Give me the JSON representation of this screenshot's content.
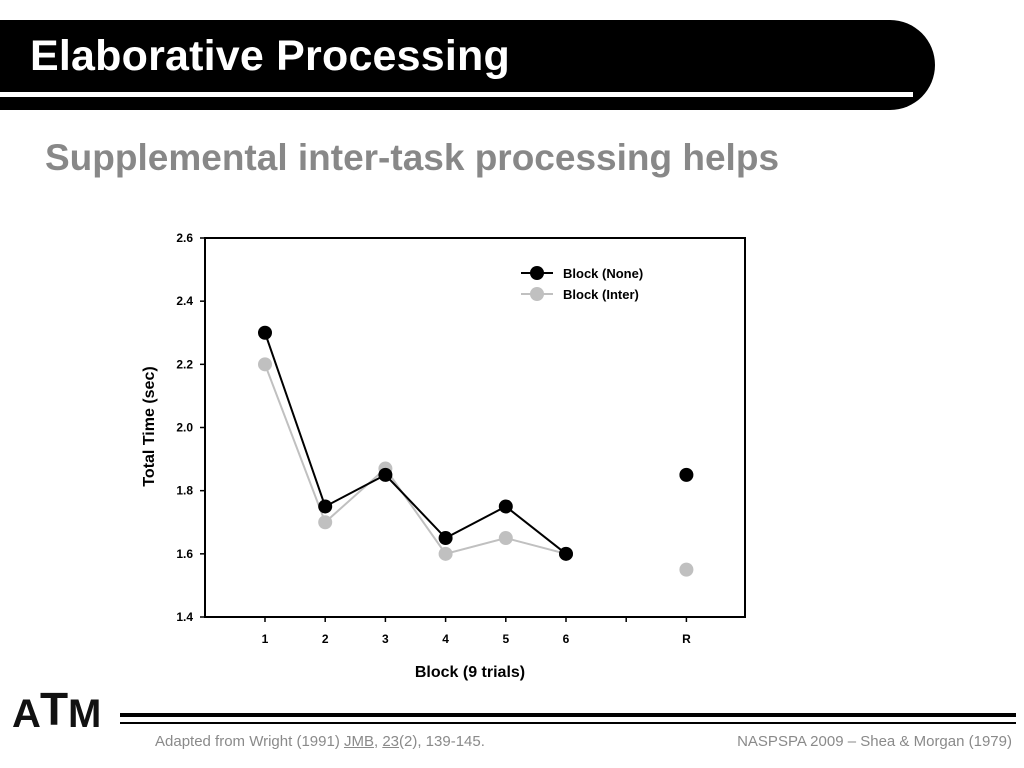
{
  "slide": {
    "title": "Elaborative Processing",
    "subtitle": "Supplemental inter-task processing helps"
  },
  "logo": {
    "letters": [
      "A",
      "T",
      "M"
    ]
  },
  "footer": {
    "left_prefix": "Adapted from Wright (1991) ",
    "journal": "JMB",
    "sep": ", ",
    "volume": "23",
    "rest": "(2), 139-145.",
    "right": "NASPSPA 2009 – Shea & Morgan (1979)"
  },
  "chart_data": {
    "type": "line",
    "xlabel": "Block (9 trials)",
    "ylabel": "Total Time (sec)",
    "ylim": [
      1.4,
      2.6
    ],
    "yticks": [
      "1.4",
      "1.6",
      "1.8",
      "2.0",
      "2.2",
      "2.4",
      "2.6"
    ],
    "categories": [
      "1",
      "2",
      "3",
      "4",
      "5",
      "6",
      "R"
    ],
    "legend_position": "top-right",
    "grid": false,
    "series": [
      {
        "name": "Block (None)",
        "color": "#000000",
        "values": [
          2.3,
          1.75,
          1.85,
          1.65,
          1.75,
          1.6,
          1.85
        ]
      },
      {
        "name": "Block (Inter)",
        "color": "#c0c0c0",
        "values": [
          2.2,
          1.7,
          1.87,
          1.6,
          1.65,
          1.6,
          1.55
        ]
      }
    ]
  }
}
